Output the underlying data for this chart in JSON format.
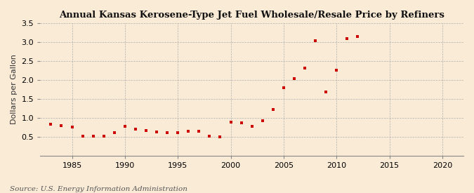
{
  "title": "Annual Kansas Kerosene-Type Jet Fuel Wholesale/Resale Price by Refiners",
  "ylabel": "Dollars per Gallon",
  "source": "Source: U.S. Energy Information Administration",
  "background_color": "#faebd7",
  "marker_color": "#cc0000",
  "years": [
    1983,
    1984,
    1985,
    1986,
    1987,
    1988,
    1989,
    1990,
    1991,
    1992,
    1993,
    1994,
    1995,
    1996,
    1997,
    1998,
    1999,
    2000,
    2001,
    2002,
    2003,
    2004,
    2005,
    2006,
    2007,
    2008,
    2009,
    2010,
    2011,
    2012
  ],
  "values": [
    0.84,
    0.8,
    0.75,
    0.51,
    0.52,
    0.51,
    0.6,
    0.77,
    0.71,
    0.67,
    0.62,
    0.6,
    0.6,
    0.65,
    0.64,
    0.51,
    0.5,
    0.88,
    0.87,
    0.77,
    0.92,
    1.22,
    1.79,
    2.04,
    2.32,
    3.04,
    1.69,
    2.26,
    3.1,
    3.16
  ],
  "xlim": [
    1982,
    2022
  ],
  "ylim": [
    0,
    3.5
  ],
  "xticks": [
    1985,
    1990,
    1995,
    2000,
    2005,
    2010,
    2015,
    2020
  ],
  "yticks": [
    0.5,
    1.0,
    1.5,
    2.0,
    2.5,
    3.0,
    3.5
  ],
  "title_fontsize": 9.5,
  "label_fontsize": 8,
  "tick_fontsize": 8,
  "source_fontsize": 7.5,
  "marker_size": 12
}
